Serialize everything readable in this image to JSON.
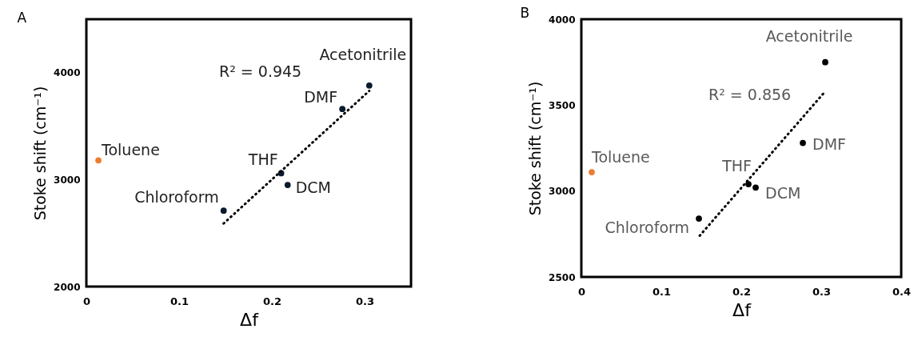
{
  "chart_data": [
    {
      "type": "scatter",
      "title": "A",
      "xlabel": "Δf",
      "ylabel": "Stoke shift (cm⁻¹)",
      "xlim": [
        0,
        0.35
      ],
      "xticks": [
        0,
        0.1,
        0.2,
        0.3
      ],
      "ylim": [
        2000,
        4500
      ],
      "yticks": [
        2000,
        3000,
        4000
      ],
      "marker": "circle",
      "series": [
        {
          "color": "#ed7d31",
          "x": [
            0.013
          ],
          "values": [
            3180
          ]
        },
        {
          "color": "#0a1a2e",
          "x": [
            0.148,
            0.21,
            0.217,
            0.276,
            0.305
          ],
          "values": [
            2710,
            3060,
            2950,
            3660,
            3880
          ]
        },
        {
          "type": "line",
          "line_style": "dotted",
          "marker": "none",
          "color": "#000000",
          "x": [
            0.148,
            0.305
          ],
          "values": [
            2590,
            3830
          ]
        }
      ],
      "annotations": [
        {
          "text": "Toluene",
          "x": 0.013,
          "y": 3180
        },
        {
          "text": "Chloroform",
          "x": 0.148,
          "y": 2710
        },
        {
          "text": "THF",
          "x": 0.21,
          "y": 3060
        },
        {
          "text": "DCM",
          "x": 0.217,
          "y": 2950
        },
        {
          "text": "DMF",
          "x": 0.276,
          "y": 3660
        },
        {
          "text": "Acetonitrile",
          "x": 0.305,
          "y": 3880
        },
        "R² = 0.945"
      ]
    },
    {
      "type": "scatter",
      "title": "B",
      "xlabel": "Δf",
      "ylabel": "Stoke shift (cm⁻¹)",
      "xlim": [
        0,
        0.4
      ],
      "xticks": [
        0,
        0.1,
        0.2,
        0.3,
        0.4
      ],
      "ylim": [
        2500,
        4000
      ],
      "yticks": [
        2500,
        3000,
        3500,
        4000
      ],
      "marker": "circle",
      "series": [
        {
          "color": "#ed7d31",
          "x": [
            0.013
          ],
          "values": [
            3110
          ]
        },
        {
          "color": "#000000",
          "x": [
            0.147,
            0.209,
            0.218,
            0.277,
            0.305
          ],
          "values": [
            2840,
            3040,
            3020,
            3280,
            3750
          ]
        },
        {
          "type": "line",
          "line_style": "dotted",
          "marker": "none",
          "color": "#000000",
          "x": [
            0.148,
            0.305
          ],
          "values": [
            2740,
            3580
          ]
        }
      ],
      "annotations": [
        {
          "text": "Toluene",
          "x": 0.013,
          "y": 3110
        },
        {
          "text": "Chloroform",
          "x": 0.147,
          "y": 2840
        },
        {
          "text": "THF",
          "x": 0.209,
          "y": 3040
        },
        {
          "text": "DCM",
          "x": 0.218,
          "y": 3020
        },
        {
          "text": "DMF",
          "x": 0.277,
          "y": 3280
        },
        {
          "text": "Acetonitrile",
          "x": 0.305,
          "y": 3750
        },
        "R² = 0.856"
      ]
    }
  ]
}
